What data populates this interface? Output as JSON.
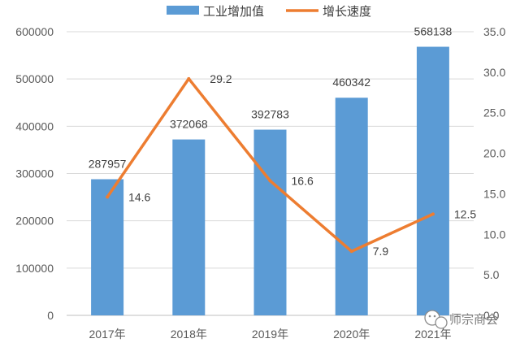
{
  "chart_data": {
    "type": "bar+line",
    "categories": [
      "2017年",
      "2018年",
      "2019年",
      "2020年",
      "2021年"
    ],
    "series": [
      {
        "name": "工业增加值",
        "type": "bar",
        "axis": "left",
        "color": "#5b9bd5",
        "values": [
          287957,
          372068,
          392783,
          460342,
          568138
        ]
      },
      {
        "name": "增长速度",
        "type": "line",
        "axis": "right",
        "color": "#ed7d31",
        "values": [
          14.6,
          29.2,
          16.6,
          7.9,
          12.5
        ]
      }
    ],
    "bar_labels": [
      "287957",
      "372068",
      "392783",
      "460342",
      "568138"
    ],
    "line_labels": [
      "14.6",
      "29.2",
      "16.6",
      "7.9",
      "12.5"
    ],
    "left_axis": {
      "min": 0,
      "max": 600000,
      "step": 100000,
      "ticks": [
        "0",
        "100000",
        "200000",
        "300000",
        "400000",
        "500000",
        "600000"
      ]
    },
    "right_axis": {
      "min": 0,
      "max": 35,
      "step": 5,
      "ticks": [
        "0.0",
        "5.0",
        "10.0",
        "15.0",
        "20.0",
        "25.0",
        "30.0",
        "35.0"
      ]
    },
    "grid": true,
    "legend": "top"
  },
  "watermark": {
    "text": "师宗商会",
    "icon": "wechat-icon"
  }
}
